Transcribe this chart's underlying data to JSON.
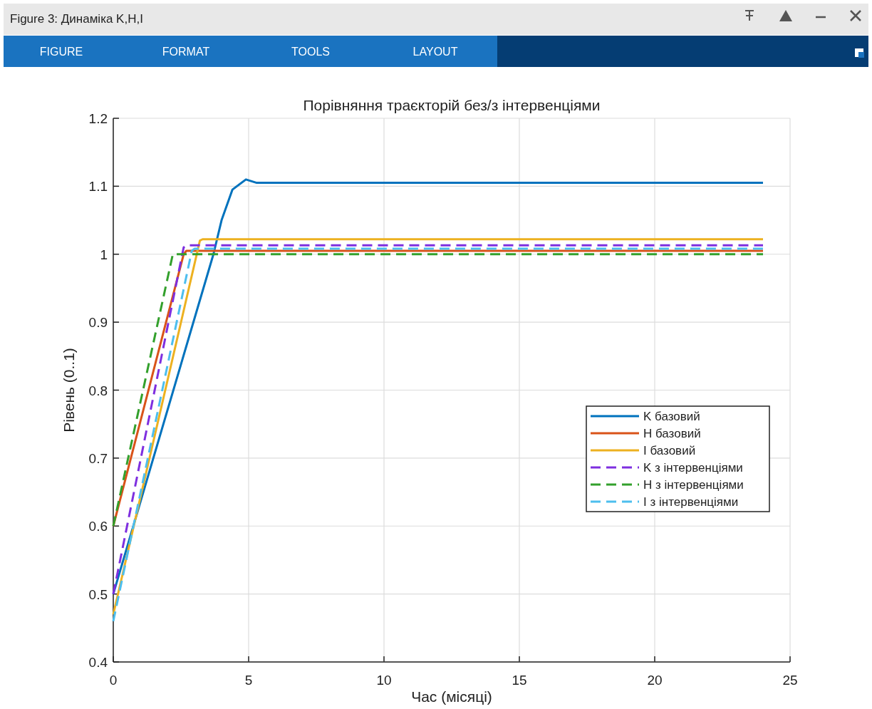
{
  "chart_data": {
    "type": "line",
    "title": "Порівняння траєкторій без/з інтервенціями",
    "xlabel": "Час (місяці)",
    "ylabel": "Рівень (0..1)",
    "annotations": [
      "Figure 3: Динаміка K,H,I",
      "FIGURE",
      "FORMAT",
      "TOOLS",
      "LAYOUT"
    ],
    "xlim": [
      0,
      25
    ],
    "xticks": [
      0,
      5,
      10,
      15,
      20,
      25
    ],
    "ylim": [
      0.4,
      1.2
    ],
    "yticks": [
      0.4,
      0.5,
      0.6,
      0.7,
      0.8,
      0.9,
      1,
      1.1,
      1.2
    ],
    "grid": true,
    "legend": "right",
    "marker": "none",
    "series": [
      {
        "name": "K базовий",
        "color": "#0072bd",
        "line_style": "solid",
        "x": [
          0,
          3.7,
          4,
          4.4,
          4.9,
          5.3,
          24
        ],
        "values": [
          0.5,
          1.0,
          1.05,
          1.095,
          1.11,
          1.105,
          1.105
        ]
      },
      {
        "name": "H базовий",
        "color": "#d95319",
        "line_style": "solid",
        "x": [
          0,
          2.6,
          2.7,
          24
        ],
        "values": [
          0.6,
          1.0,
          1.005,
          1.005
        ]
      },
      {
        "name": "I базовий",
        "color": "#edb120",
        "line_style": "solid",
        "x": [
          0,
          3.2,
          3.3,
          24
        ],
        "values": [
          0.47,
          1.02,
          1.022,
          1.022
        ]
      },
      {
        "name": "K з інтервенціями",
        "color": "#7e2fdf",
        "line_style": "dashed",
        "x": [
          0,
          2.6,
          2.7,
          24
        ],
        "values": [
          0.5,
          1.01,
          1.013,
          1.013
        ]
      },
      {
        "name": "H з інтервенціями",
        "color": "#33a02c",
        "line_style": "dashed",
        "x": [
          0,
          2.2,
          24
        ],
        "values": [
          0.6,
          1.0,
          1.0
        ]
      },
      {
        "name": "I з інтервенціями",
        "color": "#4dbeee",
        "line_style": "dashed",
        "x": [
          0,
          2.9,
          3.0,
          24
        ],
        "values": [
          0.46,
          1.005,
          1.008,
          1.008
        ]
      }
    ]
  }
}
